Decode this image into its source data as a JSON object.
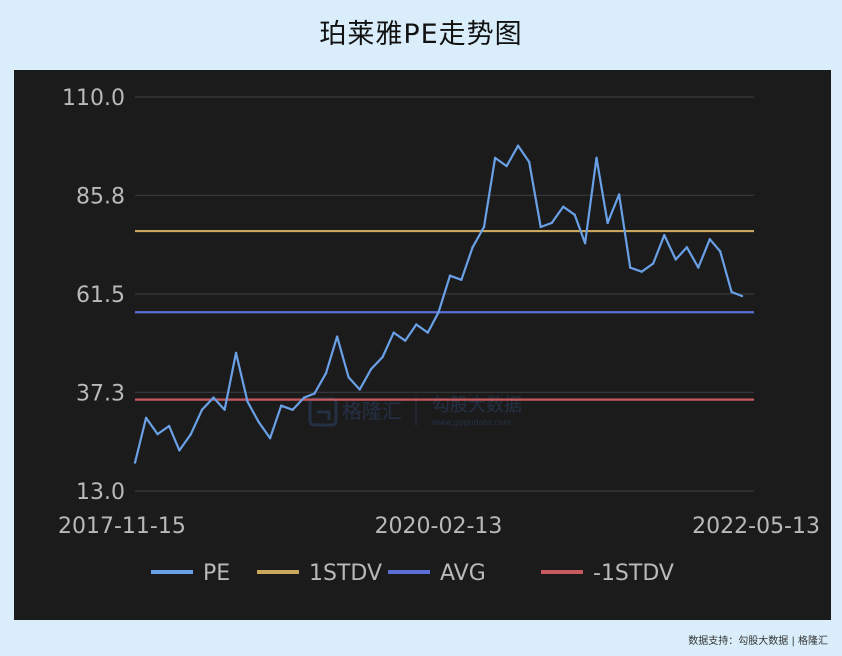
{
  "title": "珀莱雅PE走势图",
  "footer_text": "数据支持：勾股大数据 | 格隆汇",
  "watermark": {
    "brand": "格隆汇",
    "sub_brand": "勾股大数据",
    "url": "www.gogudata.com"
  },
  "colors": {
    "background": "#d9eefa",
    "panel": "#1b1b1c",
    "grid": "#3a3a3d",
    "pe": "#6aa0e6",
    "stdv_plus": "#c9a75c",
    "avg": "#5a6fd6",
    "stdv_minus": "#c75a5e"
  },
  "chart_data": {
    "type": "line",
    "title": "珀莱雅PE走势图",
    "xlabel": "",
    "ylabel": "",
    "x_ticks": [
      "2017-11-15",
      "2020-02-13",
      "2022-05-13"
    ],
    "y_ticks": [
      110.0,
      85.8,
      61.5,
      37.3,
      13.0
    ],
    "ylim": [
      13.0,
      110.0
    ],
    "x_range": [
      "2017-11-15",
      "2022-05-13"
    ],
    "grid": true,
    "legend_position": "bottom",
    "legend": [
      "PE",
      "1STDV",
      "AVG",
      "-1STDV"
    ],
    "series": [
      {
        "name": "PE",
        "x": [
          "2017-11-15",
          "2017-12-15",
          "2018-01-15",
          "2018-02-15",
          "2018-03-15",
          "2018-04-15",
          "2018-05-15",
          "2018-06-15",
          "2018-07-15",
          "2018-08-15",
          "2018-09-15",
          "2018-10-15",
          "2018-11-15",
          "2018-12-15",
          "2019-01-15",
          "2019-02-15",
          "2019-03-15",
          "2019-04-15",
          "2019-05-15",
          "2019-06-15",
          "2019-07-15",
          "2019-08-15",
          "2019-09-15",
          "2019-10-15",
          "2019-11-15",
          "2019-12-15",
          "2020-01-15",
          "2020-02-13",
          "2020-03-15",
          "2020-04-15",
          "2020-05-15",
          "2020-06-15",
          "2020-07-15",
          "2020-08-15",
          "2020-09-15",
          "2020-10-15",
          "2020-11-15",
          "2020-12-15",
          "2021-01-15",
          "2021-02-15",
          "2021-03-15",
          "2021-04-15",
          "2021-05-15",
          "2021-06-15",
          "2021-07-15",
          "2021-08-15",
          "2021-09-15",
          "2021-10-15",
          "2021-11-15",
          "2021-12-15",
          "2022-01-15",
          "2022-02-15",
          "2022-03-15",
          "2022-04-15",
          "2022-05-13"
        ],
        "values": [
          20,
          31,
          27,
          29,
          23,
          27,
          33,
          36,
          33,
          47,
          35,
          30,
          26,
          34,
          33,
          36,
          37,
          42,
          51,
          41,
          38,
          43,
          46,
          52,
          50,
          54,
          52,
          57,
          66,
          65,
          73,
          78,
          95,
          93,
          98,
          94,
          78,
          79,
          83,
          81,
          74,
          95,
          79,
          86,
          68,
          67,
          69,
          76,
          70,
          73,
          68,
          75,
          72,
          62,
          61
        ]
      },
      {
        "name": "1STDV",
        "x": [
          "2017-11-15",
          "2022-05-13"
        ],
        "values": [
          77.0,
          77.0
        ]
      },
      {
        "name": "AVG",
        "x": [
          "2017-11-15",
          "2022-05-13"
        ],
        "values": [
          57.0,
          57.0
        ]
      },
      {
        "name": "-1STDV",
        "x": [
          "2017-11-15",
          "2022-05-13"
        ],
        "values": [
          35.5,
          35.5
        ]
      }
    ]
  }
}
